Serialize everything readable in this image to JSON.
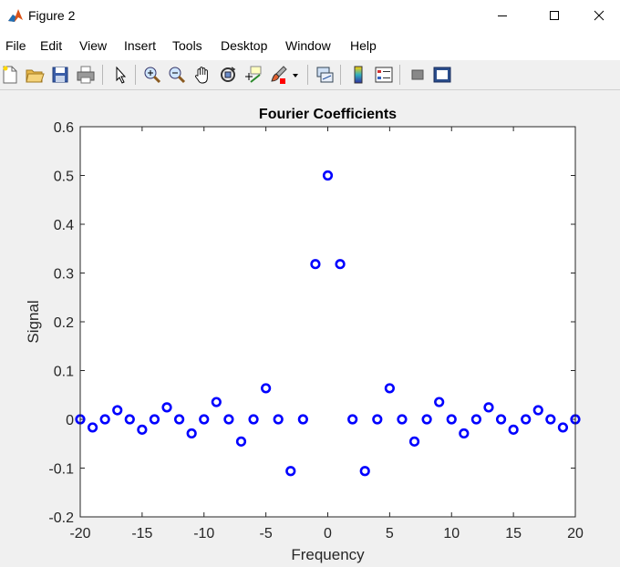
{
  "window": {
    "title": "Figure 2",
    "controls": [
      "minimize",
      "maximize",
      "close"
    ]
  },
  "menu": {
    "items": [
      "File",
      "Edit",
      "View",
      "Insert",
      "Tools",
      "Desktop",
      "Window",
      "Help"
    ]
  },
  "toolbar": {
    "icons": [
      "new-figure-icon",
      "open-file-icon",
      "save-icon",
      "print-icon",
      "edit-plot-icon",
      "zoom-in-icon",
      "zoom-out-icon",
      "pan-icon",
      "rotate-3d-icon",
      "data-cursor-icon",
      "brush-icon",
      "brush-dropdown-icon",
      "link-plot-icon",
      "colorbar-icon",
      "legend-icon",
      "hide-plot-tools-icon",
      "show-plot-tools-icon"
    ]
  },
  "chart_data": {
    "type": "scatter",
    "title": "Fourier Coefficients",
    "xlabel": "Frequency",
    "ylabel": "Signal",
    "xlim": [
      -20,
      20
    ],
    "ylim": [
      -0.2,
      0.6
    ],
    "xticks": [
      "-20",
      "-15",
      "-10",
      "-5",
      "0",
      "5",
      "10",
      "15",
      "20"
    ],
    "yticks": [
      "-0.2",
      "-0.1",
      "0",
      "0.1",
      "0.2",
      "0.3",
      "0.4",
      "0.5",
      "0.6"
    ],
    "marker": "circle",
    "marker_color": "#0000ff",
    "grid": false,
    "x": [
      -20,
      -19,
      -18,
      -17,
      -16,
      -15,
      -14,
      -13,
      -12,
      -11,
      -10,
      -9,
      -8,
      -7,
      -6,
      -5,
      -4,
      -3,
      -2,
      -1,
      0,
      1,
      2,
      3,
      4,
      5,
      6,
      7,
      8,
      9,
      10,
      11,
      12,
      13,
      14,
      15,
      16,
      17,
      18,
      19,
      20
    ],
    "y": [
      0,
      -0.0167,
      0,
      0.0187,
      0,
      -0.0212,
      0,
      0.0245,
      0,
      -0.0289,
      0,
      0.0354,
      0,
      -0.0455,
      0,
      0.0637,
      0,
      -0.1061,
      0,
      0.3183,
      0.5,
      0.3183,
      0,
      -0.1061,
      0,
      0.0637,
      0,
      -0.0455,
      0,
      0.0354,
      0,
      -0.0289,
      0,
      0.0245,
      0,
      -0.0212,
      0,
      0.0187,
      0,
      -0.0167,
      0
    ]
  }
}
